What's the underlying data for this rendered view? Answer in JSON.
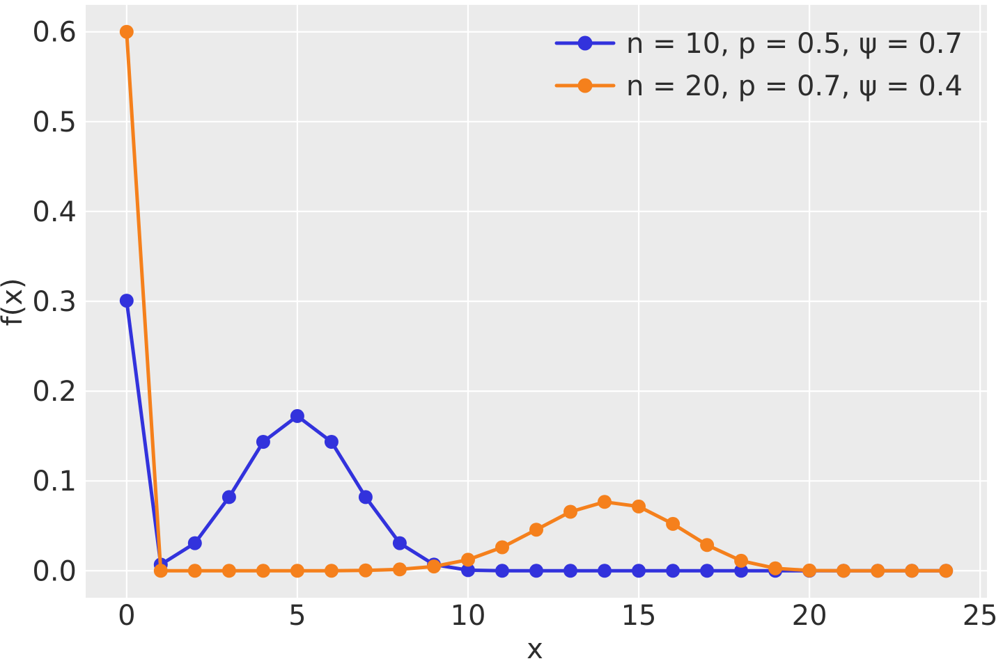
{
  "figure": {
    "background": "#ffffff",
    "axes_background": "#ebebeb",
    "grid_color": "#ffffff",
    "text_color": "#2d2d2d"
  },
  "chart_data": {
    "type": "line",
    "title": "",
    "xlabel": "x",
    "ylabel": "f(x)",
    "x": [
      0,
      1,
      2,
      3,
      4,
      5,
      6,
      7,
      8,
      9,
      10,
      11,
      12,
      13,
      14,
      15,
      16,
      17,
      18,
      19,
      20,
      21,
      22,
      23,
      24
    ],
    "series": [
      {
        "name": "n = 10, p = 0.5, ψ = 0.7",
        "color": "#3232dc",
        "marker": "circle",
        "values": [
          0.30068,
          0.00684,
          0.03076,
          0.08203,
          0.14355,
          0.17227,
          0.14355,
          0.08203,
          0.03076,
          0.00684,
          0.00068,
          0,
          0,
          0,
          0,
          0,
          0,
          0,
          0,
          0,
          0,
          0,
          0,
          0,
          0
        ]
      },
      {
        "name": "n = 20, p = 0.7, ψ = 0.4",
        "color": "#f5801c",
        "marker": "circle",
        "values": [
          0.6,
          0,
          0,
          0,
          0,
          1.5e-05,
          8.7e-05,
          0.000407,
          0.001544,
          0.004803,
          0.012327,
          0.026149,
          0.045759,
          0.065705,
          0.076656,
          0.071545,
          0.052168,
          0.028641,
          0.011138,
          0.002736,
          0.000319,
          2.8e-05,
          2e-06,
          0,
          0
        ]
      }
    ],
    "xlim": [
      -1.2,
      25.2
    ],
    "ylim": [
      -0.03,
      0.63
    ],
    "xticks": [
      0,
      5,
      10,
      15,
      20,
      25
    ],
    "xtick_labels": [
      "0",
      "5",
      "10",
      "15",
      "20",
      "25"
    ],
    "yticks": [
      0.0,
      0.1,
      0.2,
      0.3,
      0.4,
      0.5,
      0.6
    ],
    "ytick_labels": [
      "0.0",
      "0.1",
      "0.2",
      "0.3",
      "0.4",
      "0.5",
      "0.6"
    ],
    "grid": true,
    "legend_position": "upper right"
  }
}
